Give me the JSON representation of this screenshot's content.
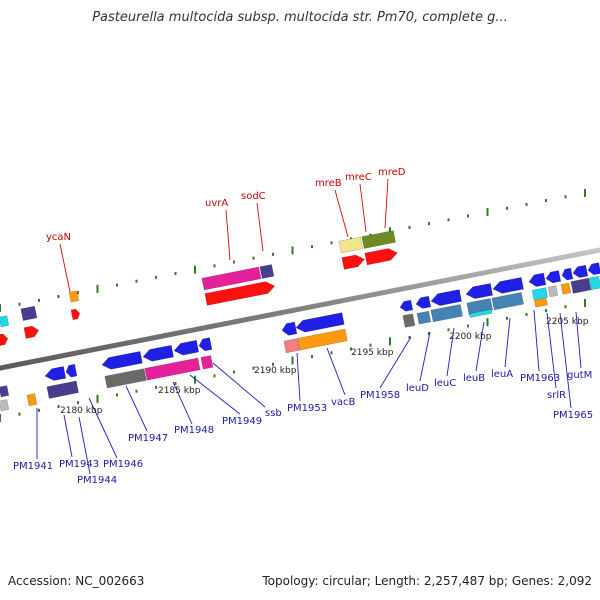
{
  "title": "Pasteurella multocida subsp. multocida str. Pm70, complete g...",
  "footer": {
    "accession": "Accession: NC_002663",
    "topology": "Topology: circular; Length: 2,257,487 bp; Genes: 2,092"
  },
  "scale_labels": [
    "2180 kbp",
    "2185 kbp",
    "2190 kbp",
    "2195 kbp",
    "2200 kbp",
    "2205 kbp"
  ],
  "gene_labels_top": [
    "ycaN",
    "uvrA",
    "sodC",
    "mreB",
    "mreC",
    "mreD"
  ],
  "gene_labels_bottom": [
    "PM1941",
    "PM1943",
    "PM1944",
    "PM1946",
    "PM1947",
    "PM1948",
    "PM1949",
    "ssb",
    "PM1953",
    "vacB",
    "PM1958",
    "leuD",
    "leuC",
    "leuB",
    "leuA",
    "PM1963",
    "srlR",
    "PM1965",
    "gutM"
  ],
  "colors": {
    "backbone": "#808080",
    "top_label": "#cc0000",
    "bottom_label": "#1a1aa6",
    "tick": "#2e7d1e",
    "blue": "#1f1fe6",
    "red": "#ff1010",
    "magenta": "#e6209a",
    "purple": "#4a3d8f",
    "orange": "#ff9a10",
    "olive": "#6e8a20",
    "khaki": "#f0e68c",
    "steel": "#4682b4",
    "cyan": "#20d8e6",
    "gray": "#6a6a6a",
    "pink": "#f08080",
    "silver": "#bbbbbb"
  }
}
